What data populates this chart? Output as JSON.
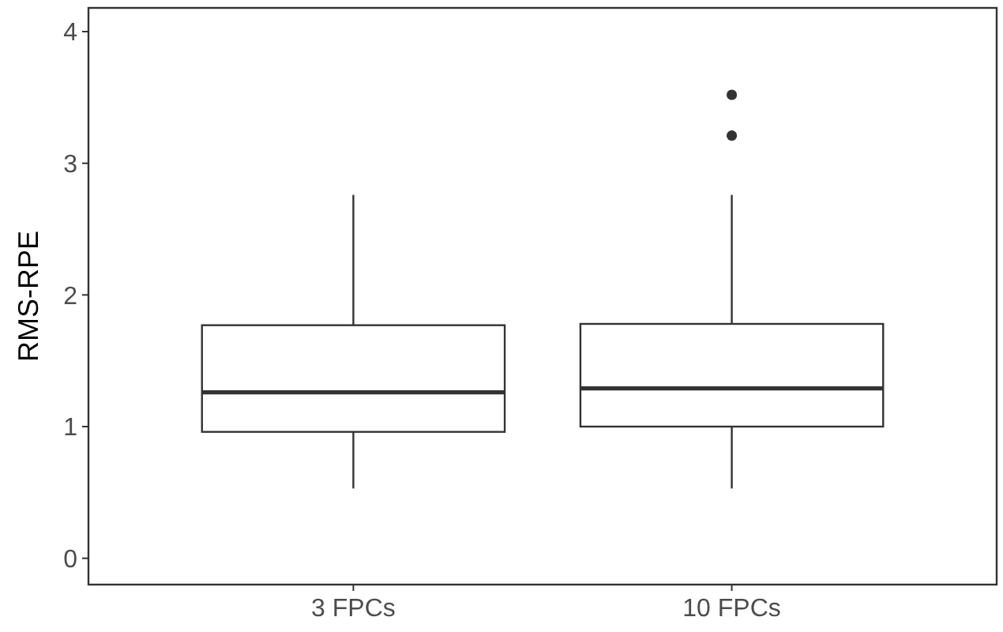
{
  "chart_data": {
    "type": "box",
    "ylabel": "RMS-RPE",
    "categories": [
      "3 FPCs",
      "10 FPCs"
    ],
    "boxes": [
      {
        "low": 0.53,
        "q1": 0.96,
        "median": 1.26,
        "q3": 1.77,
        "high": 2.76
      },
      {
        "low": 0.53,
        "q1": 1.0,
        "median": 1.29,
        "q3": 1.78,
        "high": 2.76,
        "outliers": [
          3.21,
          3.52
        ]
      }
    ],
    "ylim": [
      -0.2,
      4.18
    ],
    "yticks": [
      0,
      1,
      2,
      3,
      4
    ],
    "grid": false
  }
}
